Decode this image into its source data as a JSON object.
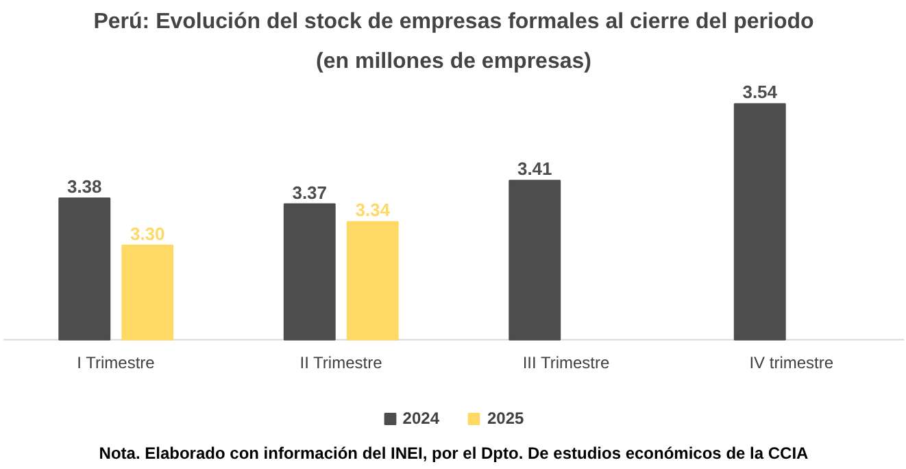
{
  "chart_data": {
    "type": "bar",
    "title": "Perú: Evolución del stock de empresas formales al cierre del periodo",
    "subtitle": "(en millones de empresas)",
    "categories": [
      "I Trimestre",
      "II Trimestre",
      "III Trimestre",
      "IV trimestre"
    ],
    "series": [
      {
        "name": "2024",
        "color": "#4d4d4d",
        "values": [
          3.38,
          3.37,
          3.41,
          3.54
        ],
        "value_labels": [
          "3.38",
          "3.37",
          "3.41",
          "3.54"
        ]
      },
      {
        "name": "2025",
        "color": "#ffd966",
        "values": [
          3.3,
          3.34,
          null,
          null
        ],
        "value_labels": [
          "3.30",
          "3.34",
          null,
          null
        ]
      }
    ],
    "ylim": [
      3.14,
      3.54
    ],
    "grid": false,
    "legend": "bottom",
    "annotations": [
      "Nota. Elaborado con información del INEI, por el Dpto. De estudios económicos de la CCIA"
    ]
  }
}
